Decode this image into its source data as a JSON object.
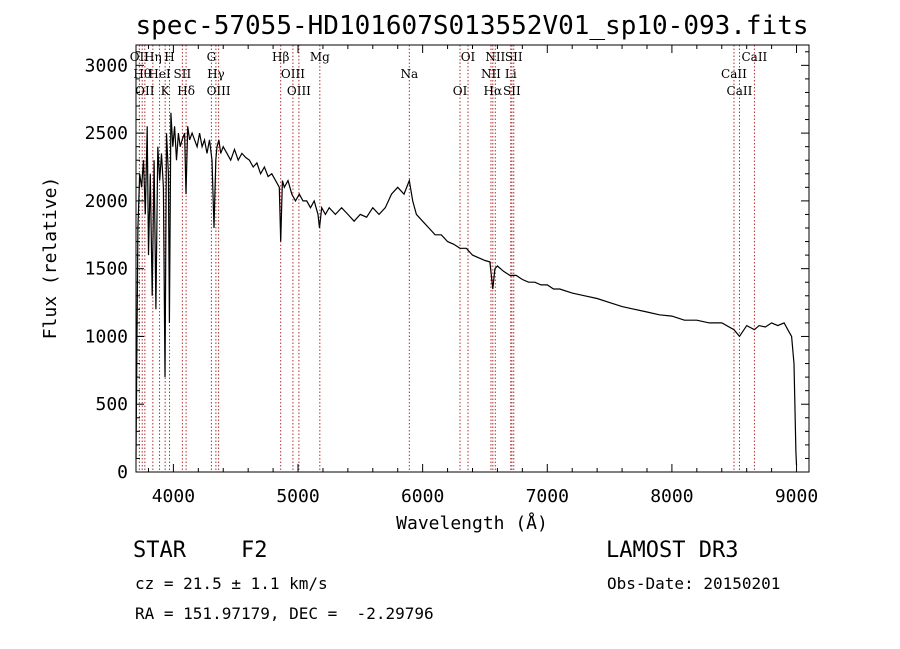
{
  "chart_data": {
    "type": "line",
    "title": "spec-57055-HD101607S013552V01_sp10-093.fits",
    "xlabel": "Wavelength (Å)",
    "ylabel": "Flux (relative)",
    "xlim": [
      3700,
      9100
    ],
    "ylim": [
      0,
      3150
    ],
    "x_ticks": [
      4000,
      5000,
      6000,
      7000,
      8000,
      9000
    ],
    "x_tick_labels": [
      "4000",
      "5000",
      "6000",
      "7000",
      "8000",
      "9000"
    ],
    "y_ticks": [
      0,
      500,
      1000,
      1500,
      2000,
      2500,
      3000
    ],
    "y_tick_labels": [
      "0",
      "500",
      "1000",
      "1500",
      "2000",
      "2500",
      "3000"
    ],
    "grid": false,
    "series": [
      {
        "x": [
          3700,
          3715,
          3730,
          3745,
          3760,
          3775,
          3790,
          3800,
          3815,
          3830,
          3845,
          3860,
          3875,
          3890,
          3905,
          3920,
          3933,
          3945,
          3960,
          3968,
          3980,
          3995,
          4010,
          4025,
          4040,
          4055,
          4070,
          4090,
          4101,
          4115,
          4130,
          4150,
          4170,
          4190,
          4210,
          4230,
          4250,
          4270,
          4290,
          4310,
          4326,
          4340,
          4350,
          4365,
          4380,
          4400,
          4430,
          4460,
          4490,
          4520,
          4550,
          4580,
          4610,
          4640,
          4670,
          4700,
          4730,
          4760,
          4790,
          4820,
          4850,
          4861,
          4875,
          4890,
          4920,
          4950,
          4980,
          5010,
          5040,
          5070,
          5100,
          5130,
          5160,
          5172,
          5190,
          5220,
          5250,
          5300,
          5350,
          5400,
          5450,
          5500,
          5550,
          5600,
          5650,
          5700,
          5750,
          5800,
          5850,
          5893,
          5920,
          5950,
          6000,
          6050,
          6100,
          6150,
          6200,
          6250,
          6300,
          6350,
          6400,
          6450,
          6500,
          6540,
          6563,
          6580,
          6600,
          6650,
          6700,
          6750,
          6800,
          6850,
          6900,
          6950,
          7000,
          7050,
          7100,
          7200,
          7300,
          7400,
          7500,
          7600,
          7700,
          7800,
          7900,
          8000,
          8100,
          8200,
          8300,
          8400,
          8498,
          8542,
          8600,
          8662,
          8700,
          8750,
          8800,
          8850,
          8900,
          8930,
          8960,
          8980,
          8995,
          9000
        ],
        "y": [
          100,
          1800,
          2200,
          2100,
          2300,
          1900,
          2550,
          1600,
          2200,
          1300,
          2300,
          1200,
          2400,
          2150,
          2350,
          2100,
          700,
          2500,
          2200,
          1100,
          2650,
          2400,
          2550,
          2300,
          2500,
          2400,
          2450,
          2500,
          2050,
          2550,
          2450,
          2500,
          2450,
          2400,
          2500,
          2400,
          2450,
          2350,
          2450,
          2300,
          1800,
          2300,
          2400,
          2450,
          2350,
          2400,
          2350,
          2300,
          2380,
          2300,
          2350,
          2320,
          2300,
          2250,
          2280,
          2200,
          2250,
          2180,
          2200,
          2150,
          2100,
          1700,
          2150,
          2100,
          2150,
          2050,
          2000,
          2050,
          2000,
          2000,
          1950,
          2000,
          1900,
          1800,
          1950,
          1900,
          1950,
          1900,
          1950,
          1900,
          1850,
          1900,
          1880,
          1950,
          1900,
          1950,
          2050,
          2100,
          2050,
          2150,
          2000,
          1900,
          1850,
          1800,
          1750,
          1750,
          1700,
          1680,
          1650,
          1650,
          1600,
          1580,
          1560,
          1550,
          1350,
          1500,
          1520,
          1480,
          1450,
          1450,
          1420,
          1400,
          1400,
          1380,
          1380,
          1350,
          1350,
          1320,
          1300,
          1280,
          1250,
          1220,
          1200,
          1180,
          1160,
          1150,
          1120,
          1120,
          1100,
          1100,
          1050,
          1000,
          1080,
          1050,
          1080,
          1070,
          1100,
          1080,
          1100,
          1050,
          1000,
          800,
          150,
          50
        ]
      }
    ],
    "line_annotations": [
      {
        "wavelength": 3727,
        "label": "OII"
      },
      {
        "wavelength": 3750,
        "label": "Hθ"
      },
      {
        "wavelength": 3771,
        "label": "OII"
      },
      {
        "wavelength": 3835,
        "label": "Hη"
      },
      {
        "wavelength": 3889,
        "label": "HeI"
      },
      {
        "wavelength": 3934,
        "label": "K"
      },
      {
        "wavelength": 3969,
        "label": "H"
      },
      {
        "wavelength": 4072,
        "label": "SII"
      },
      {
        "wavelength": 4102,
        "label": "Hδ"
      },
      {
        "wavelength": 4305,
        "label": "G"
      },
      {
        "wavelength": 4341,
        "label": "Hγ"
      },
      {
        "wavelength": 4363,
        "label": "OIII"
      },
      {
        "wavelength": 4861,
        "label": "Hβ"
      },
      {
        "wavelength": 4959,
        "label": "OIII"
      },
      {
        "wavelength": 5007,
        "label": "OIII"
      },
      {
        "wavelength": 5175,
        "label": "Mg"
      },
      {
        "wavelength": 5893,
        "label": "Na"
      },
      {
        "wavelength": 6300,
        "label": "OI"
      },
      {
        "wavelength": 6364,
        "label": "OI"
      },
      {
        "wavelength": 6548,
        "label": "NII"
      },
      {
        "wavelength": 6563,
        "label": "Hα"
      },
      {
        "wavelength": 6583,
        "label": "NII"
      },
      {
        "wavelength": 6707,
        "label": "Li"
      },
      {
        "wavelength": 6716,
        "label": "SII"
      },
      {
        "wavelength": 6731,
        "label": "SII"
      },
      {
        "wavelength": 8498,
        "label": "CaII"
      },
      {
        "wavelength": 8542,
        "label": "CaII"
      },
      {
        "wavelength": 8662,
        "label": "CaII"
      }
    ]
  },
  "info": {
    "class_label": "STAR",
    "subclass": "F2",
    "survey": "LAMOST DR3",
    "cz": "cz = 21.5 ± 1.1 km/s",
    "obs_date": "Obs-Date: 20150201",
    "coords": "RA = 151.97179, DEC =  -2.29796"
  },
  "colors": {
    "spectrum": "#000000",
    "line_markers": "#b03030",
    "axes": "#000000"
  }
}
